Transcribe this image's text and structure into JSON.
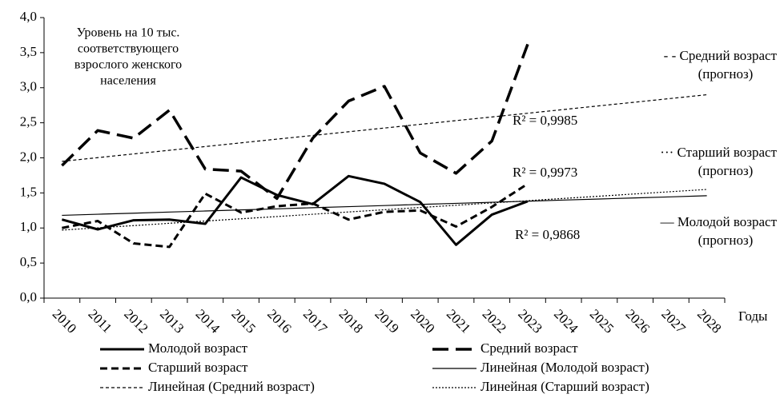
{
  "chart_data": {
    "type": "line",
    "categories": [
      "2010",
      "2011",
      "2012",
      "2013",
      "2014",
      "2015",
      "2016",
      "2017",
      "2018",
      "2019",
      "2020",
      "2021",
      "2022",
      "2023",
      "2024",
      "2025",
      "2026",
      "2027",
      "2028"
    ],
    "series": [
      {
        "name": "Молодой возраст",
        "color": "#000000",
        "width": 3,
        "dash": "none",
        "values": [
          1.12,
          0.98,
          1.11,
          1.12,
          1.06,
          1.72,
          1.47,
          1.34,
          1.74,
          1.63,
          1.37,
          0.76,
          1.19,
          1.38,
          null,
          null,
          null,
          null,
          null
        ]
      },
      {
        "name": "Средний возраст",
        "color": "#000000",
        "width": 3.5,
        "dash": "20 9",
        "values": [
          1.89,
          2.39,
          2.28,
          2.68,
          1.84,
          1.81,
          1.42,
          2.28,
          2.81,
          3.02,
          2.07,
          1.78,
          2.24,
          3.62,
          null,
          null,
          null,
          null,
          null
        ]
      },
      {
        "name": "Старший возраст",
        "color": "#000000",
        "width": 3,
        "dash": "9 5",
        "values": [
          1.0,
          1.1,
          0.78,
          0.73,
          1.49,
          1.22,
          1.31,
          1.35,
          1.12,
          1.23,
          1.25,
          1.02,
          1.3,
          1.63,
          null,
          null,
          null,
          null,
          null
        ]
      },
      {
        "name": "Линейная (Молодой возраст)",
        "color": "#000000",
        "width": 1.2,
        "dash": "none",
        "values": [
          1.18,
          1.196,
          1.211,
          1.227,
          1.242,
          1.258,
          1.273,
          1.289,
          1.304,
          1.32,
          1.336,
          1.351,
          1.367,
          1.382,
          1.398,
          1.413,
          1.429,
          1.444,
          1.46
        ]
      },
      {
        "name": "Линейная (Средний возраст)",
        "color": "#000000",
        "width": 1.2,
        "dash": "4 3",
        "values": [
          1.95,
          2.003,
          2.056,
          2.108,
          2.161,
          2.214,
          2.267,
          2.319,
          2.372,
          2.425,
          2.478,
          2.531,
          2.583,
          2.636,
          2.689,
          2.742,
          2.794,
          2.847,
          2.9
        ]
      },
      {
        "name": "Линейная (Старший возраст)",
        "color": "#000000",
        "width": 1.2,
        "dash": "2 2",
        "values": [
          0.97,
          1.002,
          1.034,
          1.067,
          1.099,
          1.131,
          1.163,
          1.196,
          1.228,
          1.26,
          1.292,
          1.324,
          1.357,
          1.389,
          1.421,
          1.453,
          1.486,
          1.518,
          1.55
        ]
      }
    ],
    "ylim": [
      0,
      4
    ],
    "yticks": [
      {
        "value": 0,
        "label": "0,0"
      },
      {
        "value": 0.5,
        "label": "0,5"
      },
      {
        "value": 1,
        "label": "1,0"
      },
      {
        "value": 1.5,
        "label": "1,5"
      },
      {
        "value": 2,
        "label": "2,0"
      },
      {
        "value": 2.5,
        "label": "2,5"
      },
      {
        "value": 3,
        "label": "3,0"
      },
      {
        "value": 3.5,
        "label": "3,5"
      },
      {
        "value": 4,
        "label": "4,0"
      }
    ],
    "xlabel": "Годы",
    "grid": false,
    "legend": "bottom",
    "note": [
      "Уровень на 10 тыс.",
      "соответствующего",
      "взрослого женского",
      "населения"
    ],
    "annotations": [
      "R² = 0,9985",
      "R² = 0,9973",
      "R² = 0,9868"
    ],
    "forecast_notes": [
      [
        "- - Средний возраст",
        "(прогноз)"
      ],
      [
        "··· Старший возраст",
        "(прогноз)"
      ],
      [
        "— Молодой возраст",
        "(прогноз)"
      ]
    ]
  }
}
